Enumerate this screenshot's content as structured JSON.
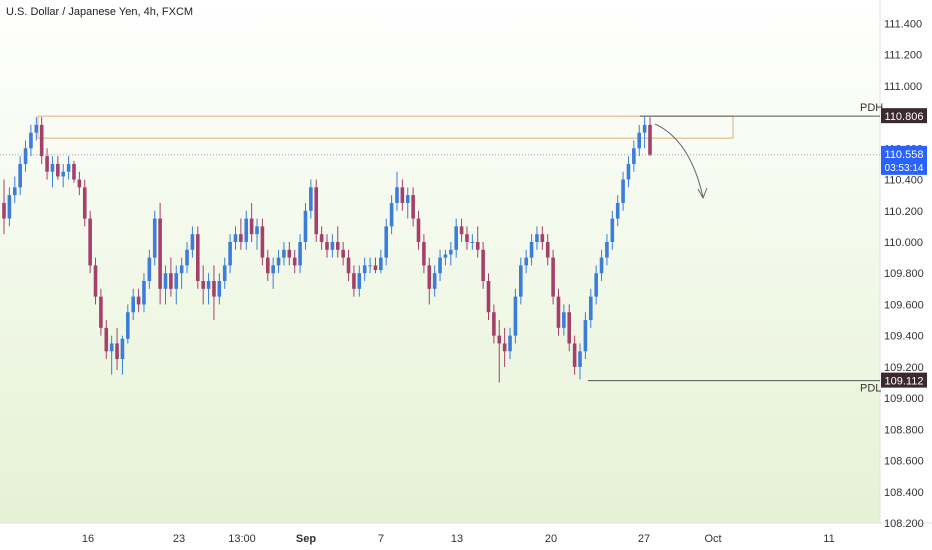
{
  "header": {
    "title": "U.S. Dollar / Japanese Yen, 4h, FXCM"
  },
  "colors": {
    "up": "#3b7dd8",
    "down": "#a5406b",
    "bg_top": "#ffffff",
    "bg_bottom": "#e5f2d4",
    "pdh_line": "#555555",
    "pdh_box_border": "#d8b27a",
    "axis_text": "#333333",
    "last_price_bg": "#2962ff",
    "level_label_bg": "#3a2a30"
  },
  "chart_data": {
    "type": "candlestick",
    "title": "U.S. Dollar / Japanese Yen, 4h, FXCM",
    "ylim": [
      108.2,
      111.55
    ],
    "y_ticks": [
      "111.400",
      "111.200",
      "111.000",
      "110.800",
      "110.600",
      "110.400",
      "110.200",
      "110.000",
      "109.800",
      "109.600",
      "109.400",
      "109.200",
      "109.000",
      "108.800",
      "108.600",
      "108.400",
      "108.200"
    ],
    "x_ticks": [
      "16",
      "23",
      "13:00",
      "Sep",
      "7",
      "13",
      "20",
      "27",
      "Oct",
      "11"
    ],
    "levels": [
      {
        "name": "PDH",
        "value": 110.806,
        "label": "110.806"
      },
      {
        "name": "PDL",
        "value": 109.112,
        "label": "109.112"
      }
    ],
    "last_price": {
      "value": 110.558,
      "label": "110.558",
      "countdown": "03:53:14"
    },
    "arrow_annotation": "expected decline from PDH",
    "candles_ohlc": [
      [
        110.25,
        110.4,
        110.05,
        110.15
      ],
      [
        110.15,
        110.35,
        110.1,
        110.3
      ],
      [
        110.3,
        110.42,
        110.25,
        110.35
      ],
      [
        110.35,
        110.55,
        110.3,
        110.5
      ],
      [
        110.5,
        110.65,
        110.45,
        110.6
      ],
      [
        110.6,
        110.75,
        110.55,
        110.7
      ],
      [
        110.7,
        110.8,
        110.65,
        110.75
      ],
      [
        110.75,
        110.8,
        110.5,
        110.55
      ],
      [
        110.55,
        110.6,
        110.4,
        110.45
      ],
      [
        110.45,
        110.55,
        110.35,
        110.5
      ],
      [
        110.5,
        110.55,
        110.4,
        110.42
      ],
      [
        110.42,
        110.5,
        110.35,
        110.45
      ],
      [
        110.45,
        110.55,
        110.4,
        110.5
      ],
      [
        110.5,
        110.52,
        110.38,
        110.4
      ],
      [
        110.4,
        110.45,
        110.3,
        110.35
      ],
      [
        110.35,
        110.4,
        110.1,
        110.15
      ],
      [
        110.15,
        110.2,
        109.8,
        109.85
      ],
      [
        109.85,
        109.9,
        109.6,
        109.65
      ],
      [
        109.65,
        109.7,
        109.4,
        109.45
      ],
      [
        109.45,
        109.5,
        109.25,
        109.3
      ],
      [
        109.3,
        109.4,
        109.15,
        109.35
      ],
      [
        109.35,
        109.45,
        109.18,
        109.25
      ],
      [
        109.25,
        109.4,
        109.15,
        109.38
      ],
      [
        109.38,
        109.6,
        109.35,
        109.55
      ],
      [
        109.55,
        109.7,
        109.5,
        109.65
      ],
      [
        109.65,
        109.7,
        109.55,
        109.6
      ],
      [
        109.6,
        109.8,
        109.55,
        109.75
      ],
      [
        109.75,
        109.95,
        109.7,
        109.9
      ],
      [
        109.9,
        110.2,
        109.85,
        110.15
      ],
      [
        110.15,
        110.25,
        109.6,
        109.7
      ],
      [
        109.7,
        109.85,
        109.6,
        109.8
      ],
      [
        109.8,
        109.9,
        109.65,
        109.7
      ],
      [
        109.7,
        109.85,
        109.6,
        109.8
      ],
      [
        109.8,
        109.9,
        109.7,
        109.85
      ],
      [
        109.85,
        110.0,
        109.8,
        109.95
      ],
      [
        109.95,
        110.1,
        109.9,
        110.05
      ],
      [
        110.05,
        110.1,
        109.7,
        109.75
      ],
      [
        109.75,
        109.85,
        109.6,
        109.7
      ],
      [
        109.7,
        109.8,
        109.6,
        109.75
      ],
      [
        109.75,
        109.85,
        109.5,
        109.65
      ],
      [
        109.65,
        109.8,
        109.6,
        109.75
      ],
      [
        109.75,
        109.9,
        109.7,
        109.85
      ],
      [
        109.85,
        110.05,
        109.8,
        110.0
      ],
      [
        110.0,
        110.1,
        109.95,
        110.05
      ],
      [
        110.05,
        110.15,
        109.95,
        110.0
      ],
      [
        110.0,
        110.2,
        109.95,
        110.15
      ],
      [
        110.15,
        110.25,
        110.0,
        110.05
      ],
      [
        110.05,
        110.15,
        109.95,
        110.1
      ],
      [
        110.1,
        110.15,
        109.85,
        109.9
      ],
      [
        109.9,
        109.95,
        109.75,
        109.8
      ],
      [
        109.8,
        109.9,
        109.7,
        109.85
      ],
      [
        109.85,
        109.95,
        109.8,
        109.9
      ],
      [
        109.9,
        110.0,
        109.85,
        109.95
      ],
      [
        109.95,
        110.0,
        109.85,
        109.9
      ],
      [
        109.9,
        109.95,
        109.8,
        109.85
      ],
      [
        109.85,
        110.05,
        109.8,
        110.0
      ],
      [
        110.0,
        110.25,
        109.95,
        110.2
      ],
      [
        110.2,
        110.4,
        110.15,
        110.35
      ],
      [
        110.35,
        110.4,
        110.0,
        110.05
      ],
      [
        110.05,
        110.1,
        109.95,
        110.0
      ],
      [
        110.0,
        110.05,
        109.9,
        109.95
      ],
      [
        109.95,
        110.05,
        109.9,
        110.0
      ],
      [
        110.0,
        110.1,
        109.9,
        109.95
      ],
      [
        109.95,
        110.0,
        109.85,
        109.9
      ],
      [
        109.9,
        109.95,
        109.75,
        109.8
      ],
      [
        109.8,
        109.85,
        109.65,
        109.7
      ],
      [
        109.7,
        109.85,
        109.65,
        109.8
      ],
      [
        109.8,
        109.9,
        109.75,
        109.85
      ],
      [
        109.85,
        109.9,
        109.8,
        109.85
      ],
      [
        109.85,
        109.9,
        109.8,
        109.82
      ],
      [
        109.82,
        109.95,
        109.8,
        109.9
      ],
      [
        109.9,
        110.15,
        109.85,
        110.1
      ],
      [
        110.1,
        110.3,
        110.05,
        110.25
      ],
      [
        110.25,
        110.45,
        110.2,
        110.35
      ],
      [
        110.35,
        110.4,
        110.2,
        110.25
      ],
      [
        110.25,
        110.35,
        110.15,
        110.3
      ],
      [
        110.3,
        110.35,
        110.1,
        110.15
      ],
      [
        110.15,
        110.2,
        109.95,
        110.0
      ],
      [
        110.0,
        110.05,
        109.8,
        109.85
      ],
      [
        109.85,
        109.9,
        109.6,
        109.7
      ],
      [
        109.7,
        109.85,
        109.65,
        109.8
      ],
      [
        109.8,
        109.95,
        109.75,
        109.9
      ],
      [
        109.9,
        109.95,
        109.85,
        109.92
      ],
      [
        109.92,
        110.0,
        109.85,
        109.95
      ],
      [
        109.95,
        110.15,
        109.9,
        110.1
      ],
      [
        110.1,
        110.15,
        110.0,
        110.05
      ],
      [
        110.05,
        110.1,
        109.95,
        110.0
      ],
      [
        110.0,
        110.05,
        109.95,
        110.0
      ],
      [
        110.0,
        110.1,
        109.9,
        109.95
      ],
      [
        109.95,
        110.0,
        109.7,
        109.75
      ],
      [
        109.75,
        109.8,
        109.5,
        109.55
      ],
      [
        109.55,
        109.6,
        109.35,
        109.4
      ],
      [
        109.4,
        109.5,
        109.1,
        109.35
      ],
      [
        109.35,
        109.45,
        109.2,
        109.3
      ],
      [
        109.3,
        109.45,
        109.25,
        109.4
      ],
      [
        109.4,
        109.7,
        109.35,
        109.65
      ],
      [
        109.65,
        109.9,
        109.6,
        109.85
      ],
      [
        109.85,
        109.95,
        109.8,
        109.9
      ],
      [
        109.9,
        110.05,
        109.85,
        110.0
      ],
      [
        110.0,
        110.1,
        109.95,
        110.05
      ],
      [
        110.05,
        110.1,
        109.95,
        110.0
      ],
      [
        110.0,
        110.05,
        109.85,
        109.9
      ],
      [
        109.9,
        109.95,
        109.6,
        109.65
      ],
      [
        109.65,
        109.7,
        109.4,
        109.45
      ],
      [
        109.45,
        109.6,
        109.4,
        109.55
      ],
      [
        109.55,
        109.6,
        109.3,
        109.35
      ],
      [
        109.35,
        109.4,
        109.15,
        109.2
      ],
      [
        109.2,
        109.35,
        109.12,
        109.3
      ],
      [
        109.3,
        109.55,
        109.25,
        109.5
      ],
      [
        109.5,
        109.7,
        109.45,
        109.65
      ],
      [
        109.65,
        109.85,
        109.6,
        109.8
      ],
      [
        109.8,
        109.95,
        109.75,
        109.9
      ],
      [
        109.9,
        110.05,
        109.85,
        110.0
      ],
      [
        110.0,
        110.2,
        109.95,
        110.15
      ],
      [
        110.15,
        110.3,
        110.1,
        110.25
      ],
      [
        110.25,
        110.45,
        110.2,
        110.4
      ],
      [
        110.4,
        110.55,
        110.35,
        110.5
      ],
      [
        110.5,
        110.65,
        110.45,
        110.6
      ],
      [
        110.6,
        110.75,
        110.55,
        110.7
      ],
      [
        110.7,
        110.81,
        110.6,
        110.75
      ],
      [
        110.75,
        110.8,
        110.55,
        110.56
      ]
    ]
  }
}
